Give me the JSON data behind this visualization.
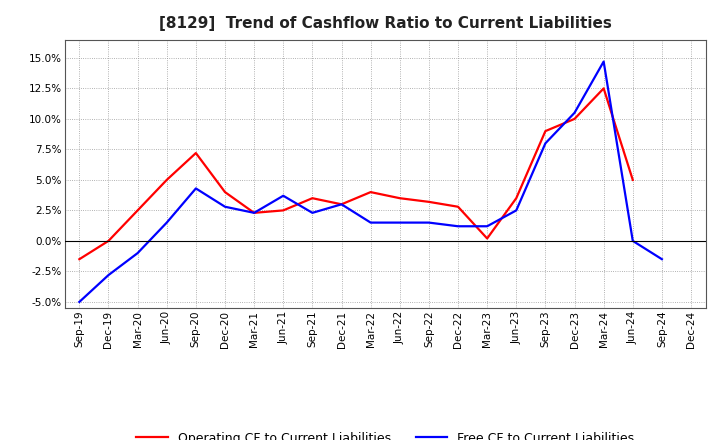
{
  "title": "[8129]  Trend of Cashflow Ratio to Current Liabilities",
  "x_labels": [
    "Sep-19",
    "Dec-19",
    "Mar-20",
    "Jun-20",
    "Sep-20",
    "Dec-20",
    "Mar-21",
    "Jun-21",
    "Sep-21",
    "Dec-21",
    "Mar-22",
    "Jun-22",
    "Sep-22",
    "Dec-22",
    "Mar-23",
    "Jun-23",
    "Sep-23",
    "Dec-23",
    "Mar-24",
    "Jun-24",
    "Sep-24",
    "Dec-24"
  ],
  "operating_cf": [
    -1.5,
    0.0,
    2.5,
    5.0,
    7.2,
    4.0,
    2.3,
    2.5,
    3.5,
    3.0,
    4.0,
    3.5,
    3.2,
    2.8,
    0.2,
    3.5,
    9.0,
    10.0,
    12.5,
    5.0,
    null,
    null
  ],
  "free_cf": [
    -5.0,
    -2.8,
    -1.0,
    1.5,
    4.3,
    2.8,
    2.3,
    3.7,
    2.3,
    3.0,
    1.5,
    1.5,
    1.5,
    1.2,
    1.2,
    2.5,
    8.0,
    10.5,
    14.7,
    0.0,
    -1.5,
    null
  ],
  "operating_color": "#FF0000",
  "free_color": "#0000FF",
  "ylim": [
    -5.5,
    16.5
  ],
  "yticks": [
    -5.0,
    -2.5,
    0.0,
    2.5,
    5.0,
    7.5,
    10.0,
    12.5,
    15.0
  ],
  "legend_operating": "Operating CF to Current Liabilities",
  "legend_free": "Free CF to Current Liabilities",
  "bg_color": "#FFFFFF",
  "plot_bg_color": "#FFFFFF",
  "grid_color": "#999999",
  "title_fontsize": 11,
  "axis_fontsize": 7.5,
  "legend_fontsize": 9
}
